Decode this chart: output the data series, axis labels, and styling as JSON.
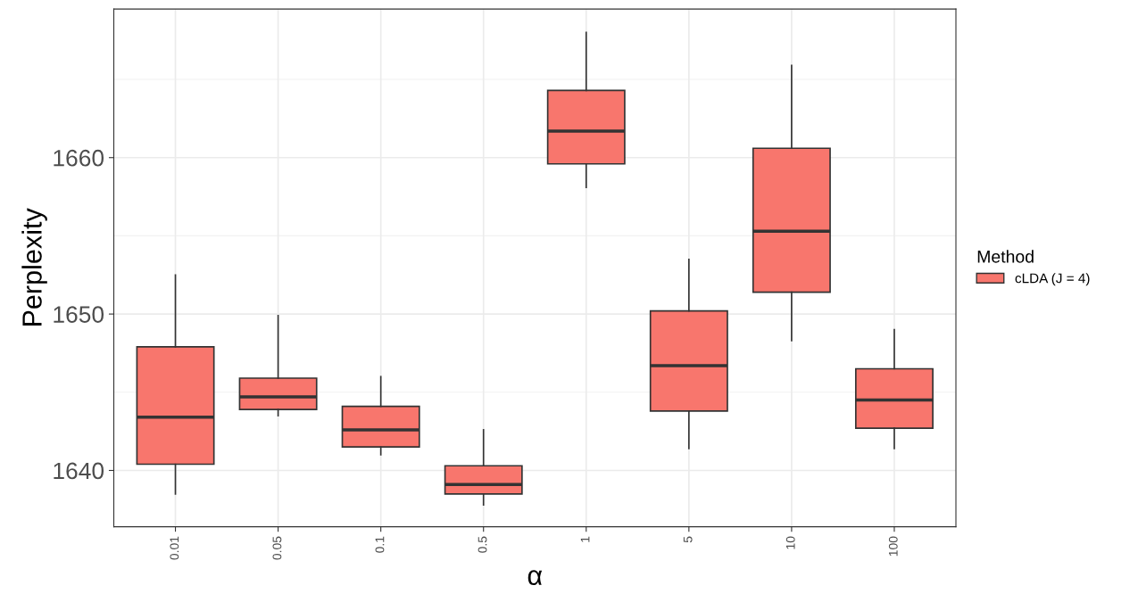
{
  "chart_data": {
    "type": "box",
    "xlabel": "α",
    "ylabel": "Perplexity",
    "legend_title": "Method",
    "legend": "right",
    "grid": true,
    "categories": [
      "0.01",
      "0.05",
      "0.1",
      "0.5",
      "1",
      "5",
      "10",
      "100"
    ],
    "ylim": [
      1636.4,
      1669.5
    ],
    "yticks": [
      1640,
      1650,
      1660
    ],
    "series": [
      {
        "name": "cLDA (J = 4)",
        "color": "#f8766d",
        "boxes": [
          {
            "low": 1638.5,
            "q1": 1640.4,
            "median": 1643.4,
            "q3": 1647.9,
            "high": 1652.5
          },
          {
            "low": 1643.5,
            "q1": 1643.9,
            "median": 1644.7,
            "q3": 1645.9,
            "high": 1649.9
          },
          {
            "low": 1641.0,
            "q1": 1641.5,
            "median": 1642.6,
            "q3": 1644.1,
            "high": 1646.0
          },
          {
            "low": 1637.8,
            "q1": 1638.5,
            "median": 1639.1,
            "q3": 1640.3,
            "high": 1642.6
          },
          {
            "low": 1658.1,
            "q1": 1659.6,
            "median": 1661.7,
            "q3": 1664.3,
            "high": 1668.0
          },
          {
            "low": 1641.4,
            "q1": 1643.8,
            "median": 1646.7,
            "q3": 1650.2,
            "high": 1653.5
          },
          {
            "low": 1648.3,
            "q1": 1651.4,
            "median": 1655.3,
            "q3": 1660.6,
            "high": 1665.9
          },
          {
            "low": 1641.4,
            "q1": 1642.7,
            "median": 1644.5,
            "q3": 1646.5,
            "high": 1649.0
          }
        ]
      }
    ]
  }
}
